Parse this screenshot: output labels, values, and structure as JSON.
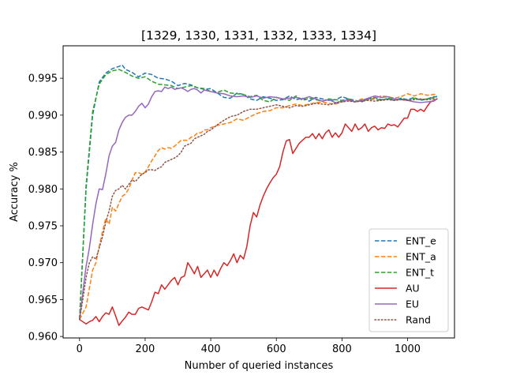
{
  "chart_data": {
    "type": "line",
    "title": "[1329, 1330, 1331, 1332, 1333, 1334]",
    "xlabel": "Number of queried instances",
    "ylabel": "Accuracy %",
    "xlim": [
      -50,
      1143
    ],
    "ylim": [
      0.9598,
      0.9994
    ],
    "xticks": [
      0,
      200,
      400,
      600,
      800,
      1000
    ],
    "yticks": [
      0.96,
      0.965,
      0.97,
      0.975,
      0.98,
      0.985,
      0.99,
      0.995
    ],
    "ytick_labels": [
      "0.960",
      "0.965",
      "0.970",
      "0.975",
      "0.980",
      "0.985",
      "0.990",
      "0.995"
    ],
    "grid": false,
    "legend_position": "lower-right",
    "series": [
      {
        "name": "ENT_e",
        "color": "#1f77b4",
        "dash": "dashed",
        "x": [
          0,
          20,
          40,
          60,
          80,
          100,
          120,
          130,
          140,
          160,
          180,
          200,
          220,
          240,
          260,
          280,
          300,
          320,
          340,
          360,
          380,
          400,
          420,
          440,
          460,
          480,
          500,
          520,
          540,
          560,
          580,
          600,
          620,
          640,
          660,
          680,
          700,
          720,
          740,
          760,
          780,
          800,
          820,
          840,
          860,
          880,
          900,
          920,
          940,
          960,
          980,
          1000,
          1020,
          1040,
          1060,
          1080,
          1090
        ],
        "y": [
          0.9623,
          0.98,
          0.99,
          0.9945,
          0.9957,
          0.9963,
          0.9966,
          0.9968,
          0.9962,
          0.9958,
          0.9952,
          0.9957,
          0.9955,
          0.995,
          0.9949,
          0.9946,
          0.994,
          0.9943,
          0.9941,
          0.9937,
          0.9935,
          0.9936,
          0.993,
          0.9924,
          0.9923,
          0.993,
          0.9928,
          0.9922,
          0.992,
          0.9925,
          0.9923,
          0.992,
          0.9921,
          0.9926,
          0.9921,
          0.9923,
          0.9919,
          0.9924,
          0.9922,
          0.992,
          0.9921,
          0.9925,
          0.9922,
          0.992,
          0.9918,
          0.9922,
          0.9924,
          0.9921,
          0.9922,
          0.992,
          0.9923,
          0.9921,
          0.9924,
          0.992,
          0.9922,
          0.9925,
          0.9925
        ]
      },
      {
        "name": "ENT_a",
        "color": "#ff7f0e",
        "dash": "dashed",
        "x": [
          0,
          20,
          30,
          40,
          50,
          60,
          70,
          80,
          90,
          100,
          110,
          120,
          130,
          140,
          150,
          160,
          170,
          180,
          190,
          200,
          210,
          220,
          230,
          240,
          250,
          260,
          270,
          280,
          290,
          300,
          310,
          320,
          330,
          340,
          350,
          360,
          370,
          380,
          390,
          400,
          420,
          440,
          460,
          480,
          500,
          520,
          540,
          560,
          580,
          600,
          620,
          640,
          660,
          680,
          700,
          720,
          740,
          760,
          780,
          800,
          820,
          840,
          860,
          880,
          900,
          920,
          940,
          960,
          980,
          1000,
          1020,
          1040,
          1060,
          1080,
          1090
        ],
        "y": [
          0.9623,
          0.964,
          0.9665,
          0.969,
          0.97,
          0.9722,
          0.9742,
          0.976,
          0.9752,
          0.9775,
          0.977,
          0.978,
          0.979,
          0.9793,
          0.98,
          0.9812,
          0.9822,
          0.9822,
          0.982,
          0.9823,
          0.983,
          0.9838,
          0.9845,
          0.9852,
          0.9856,
          0.9854,
          0.9856,
          0.9855,
          0.9858,
          0.9862,
          0.9866,
          0.9866,
          0.9866,
          0.987,
          0.9872,
          0.9876,
          0.9876,
          0.988,
          0.988,
          0.9883,
          0.9886,
          0.9888,
          0.989,
          0.9895,
          0.9893,
          0.9898,
          0.9902,
          0.9905,
          0.9906,
          0.991,
          0.991,
          0.9913,
          0.9915,
          0.9913,
          0.9915,
          0.9917,
          0.9918,
          0.9916,
          0.9915,
          0.9918,
          0.992,
          0.9918,
          0.9922,
          0.9921,
          0.9923,
          0.9926,
          0.9925,
          0.9923,
          0.9925,
          0.9929,
          0.9926,
          0.9929,
          0.9927,
          0.9928,
          0.9928
        ]
      },
      {
        "name": "ENT_t",
        "color": "#2ca02c",
        "dash": "dashed",
        "x": [
          0,
          20,
          40,
          60,
          80,
          100,
          120,
          140,
          160,
          180,
          200,
          220,
          240,
          260,
          280,
          300,
          320,
          340,
          360,
          380,
          400,
          420,
          440,
          460,
          480,
          500,
          520,
          540,
          560,
          580,
          600,
          620,
          640,
          660,
          680,
          700,
          720,
          740,
          760,
          780,
          800,
          820,
          840,
          860,
          880,
          900,
          920,
          940,
          960,
          980,
          1000,
          1020,
          1040,
          1060,
          1080,
          1090
        ],
        "y": [
          0.9623,
          0.9805,
          0.9905,
          0.9942,
          0.9955,
          0.996,
          0.9962,
          0.9958,
          0.9953,
          0.995,
          0.9952,
          0.9946,
          0.9942,
          0.9941,
          0.994,
          0.9936,
          0.9938,
          0.994,
          0.9937,
          0.9936,
          0.9932,
          0.9931,
          0.9934,
          0.993,
          0.9929,
          0.9928,
          0.9925,
          0.9927,
          0.992,
          0.9918,
          0.9924,
          0.9922,
          0.992,
          0.9926,
          0.992,
          0.9923,
          0.9921,
          0.9919,
          0.9922,
          0.9921,
          0.992,
          0.9922,
          0.9918,
          0.992,
          0.9921,
          0.9922,
          0.992,
          0.9923,
          0.9921,
          0.9922,
          0.992,
          0.9923,
          0.9921,
          0.9922,
          0.9924,
          0.9926
        ]
      },
      {
        "name": "AU",
        "color": "#d62728",
        "dash": "solid",
        "x": [
          0,
          10,
          20,
          30,
          40,
          50,
          60,
          70,
          80,
          90,
          100,
          110,
          120,
          130,
          140,
          150,
          160,
          170,
          180,
          190,
          200,
          210,
          220,
          230,
          240,
          250,
          260,
          270,
          280,
          290,
          300,
          310,
          320,
          330,
          340,
          350,
          360,
          370,
          380,
          390,
          400,
          410,
          420,
          430,
          440,
          450,
          460,
          470,
          480,
          490,
          500,
          510,
          520,
          530,
          540,
          550,
          560,
          570,
          580,
          590,
          600,
          610,
          620,
          630,
          640,
          650,
          660,
          670,
          680,
          690,
          700,
          710,
          720,
          730,
          740,
          750,
          760,
          770,
          780,
          790,
          800,
          810,
          820,
          830,
          840,
          850,
          860,
          870,
          880,
          890,
          900,
          910,
          920,
          930,
          940,
          950,
          960,
          970,
          980,
          990,
          1000,
          1010,
          1020,
          1030,
          1040,
          1050,
          1060,
          1070,
          1080,
          1090
        ],
        "y": [
          0.9623,
          0.962,
          0.9617,
          0.962,
          0.9622,
          0.9627,
          0.962,
          0.9627,
          0.9632,
          0.963,
          0.964,
          0.9628,
          0.9615,
          0.9621,
          0.9626,
          0.9633,
          0.963,
          0.963,
          0.9638,
          0.964,
          0.9638,
          0.9636,
          0.9647,
          0.966,
          0.9658,
          0.967,
          0.9664,
          0.967,
          0.9676,
          0.968,
          0.967,
          0.968,
          0.9682,
          0.97,
          0.9693,
          0.9685,
          0.9695,
          0.968,
          0.9685,
          0.969,
          0.968,
          0.969,
          0.9682,
          0.9692,
          0.97,
          0.9696,
          0.9703,
          0.9712,
          0.97,
          0.971,
          0.9705,
          0.9722,
          0.975,
          0.9768,
          0.9762,
          0.9778,
          0.979,
          0.98,
          0.9808,
          0.9815,
          0.982,
          0.983,
          0.985,
          0.9865,
          0.9867,
          0.9848,
          0.9855,
          0.9862,
          0.9866,
          0.987,
          0.987,
          0.9875,
          0.9868,
          0.9875,
          0.9868,
          0.9876,
          0.988,
          0.987,
          0.9876,
          0.987,
          0.9876,
          0.9888,
          0.9883,
          0.9878,
          0.9888,
          0.988,
          0.9883,
          0.9888,
          0.9878,
          0.9883,
          0.9885,
          0.988,
          0.9883,
          0.9882,
          0.9888,
          0.9886,
          0.9887,
          0.9884,
          0.989,
          0.9896,
          0.9896,
          0.9908,
          0.9908,
          0.9905,
          0.9908,
          0.9905,
          0.9912,
          0.9918,
          0.992,
          0.9922
        ]
      },
      {
        "name": "EU",
        "color": "#9467bd",
        "dash": "solid",
        "x": [
          0,
          10,
          20,
          30,
          40,
          50,
          60,
          70,
          80,
          90,
          100,
          110,
          120,
          130,
          140,
          150,
          160,
          170,
          180,
          190,
          200,
          210,
          220,
          230,
          240,
          250,
          260,
          270,
          280,
          290,
          300,
          310,
          320,
          330,
          340,
          350,
          360,
          370,
          380,
          390,
          400,
          420,
          440,
          460,
          480,
          500,
          520,
          540,
          560,
          580,
          600,
          620,
          640,
          660,
          680,
          700,
          720,
          740,
          760,
          780,
          800,
          820,
          840,
          860,
          880,
          900,
          920,
          940,
          960,
          980,
          1000,
          1020,
          1040,
          1060,
          1080,
          1090
        ],
        "y": [
          0.9623,
          0.966,
          0.9695,
          0.972,
          0.9752,
          0.978,
          0.98,
          0.9799,
          0.982,
          0.9845,
          0.9858,
          0.9863,
          0.988,
          0.989,
          0.9897,
          0.99,
          0.99,
          0.9905,
          0.9912,
          0.9916,
          0.991,
          0.9915,
          0.9925,
          0.9932,
          0.9933,
          0.9932,
          0.9938,
          0.9936,
          0.9938,
          0.9935,
          0.9936,
          0.9937,
          0.9935,
          0.9932,
          0.9935,
          0.9936,
          0.9934,
          0.993,
          0.9934,
          0.9933,
          0.9932,
          0.993,
          0.9929,
          0.9926,
          0.9925,
          0.9926,
          0.9924,
          0.9926,
          0.9923,
          0.9925,
          0.9924,
          0.9922,
          0.9923,
          0.9924,
          0.9922,
          0.9925,
          0.9922,
          0.9919,
          0.9921,
          0.9917,
          0.9919,
          0.9921,
          0.9918,
          0.992,
          0.9923,
          0.9926,
          0.9924,
          0.9925,
          0.9922,
          0.9921,
          0.992,
          0.9918,
          0.9917,
          0.9918,
          0.9919,
          0.9922
        ]
      },
      {
        "name": "Rand",
        "color": "#8c564b",
        "dash": "dotted",
        "x": [
          0,
          10,
          20,
          30,
          40,
          50,
          60,
          70,
          80,
          90,
          100,
          110,
          120,
          130,
          140,
          150,
          160,
          170,
          180,
          190,
          200,
          210,
          220,
          230,
          240,
          250,
          260,
          270,
          280,
          290,
          300,
          310,
          320,
          330,
          340,
          350,
          360,
          370,
          380,
          390,
          400,
          420,
          440,
          460,
          480,
          500,
          520,
          540,
          560,
          580,
          600,
          620,
          640,
          660,
          680,
          700,
          720,
          740,
          760,
          780,
          800,
          820,
          840,
          860,
          880,
          900,
          920,
          940,
          960,
          980,
          1000,
          1020,
          1040,
          1060,
          1080,
          1090
        ],
        "y": [
          0.9623,
          0.965,
          0.968,
          0.97,
          0.9708,
          0.9705,
          0.972,
          0.9735,
          0.9755,
          0.977,
          0.979,
          0.9798,
          0.98,
          0.9805,
          0.98,
          0.9806,
          0.9812,
          0.981,
          0.9815,
          0.982,
          0.9822,
          0.9826,
          0.9826,
          0.9825,
          0.9828,
          0.983,
          0.9836,
          0.9838,
          0.984,
          0.9842,
          0.9845,
          0.985,
          0.9858,
          0.986,
          0.9862,
          0.9868,
          0.987,
          0.9872,
          0.9874,
          0.9878,
          0.988,
          0.9887,
          0.9893,
          0.9898,
          0.99,
          0.9905,
          0.9908,
          0.9908,
          0.991,
          0.9912,
          0.9914,
          0.9912,
          0.991,
          0.9913,
          0.9912,
          0.9914,
          0.9916,
          0.9915,
          0.9914,
          0.9916,
          0.9918,
          0.9919,
          0.9918,
          0.9919,
          0.992,
          0.9919,
          0.992,
          0.9921,
          0.992,
          0.9921,
          0.992,
          0.9921,
          0.9922,
          0.9921,
          0.9922,
          0.9922
        ]
      }
    ]
  }
}
